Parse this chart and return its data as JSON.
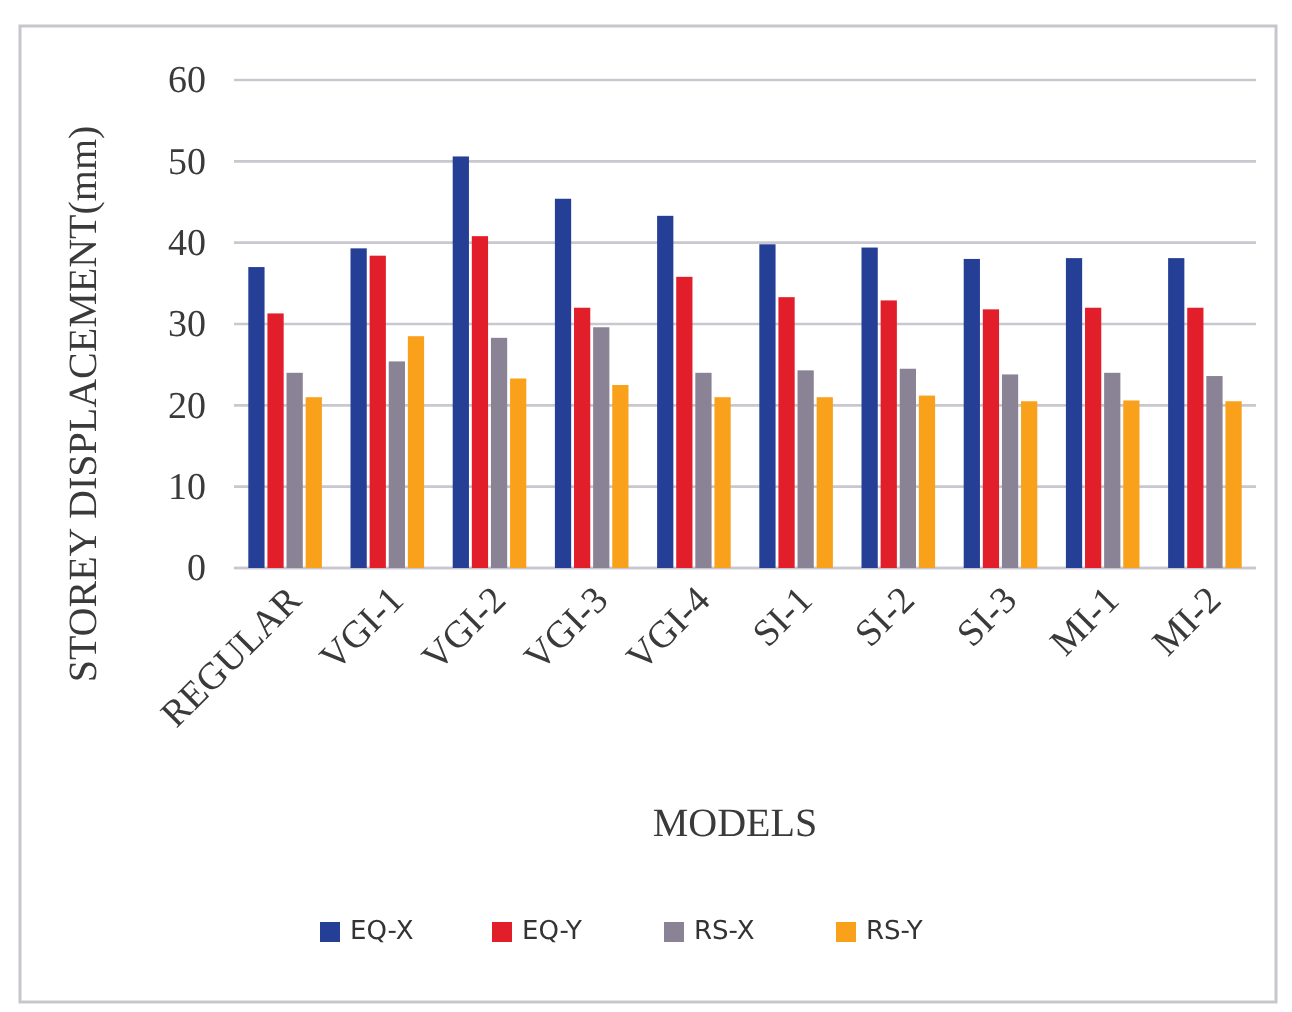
{
  "chart_data": {
    "type": "bar",
    "xlabel": "MODELS",
    "ylabel": "STOREY DISPLACEMENT(mm)",
    "categories": [
      "REGULAR",
      "VGI-1",
      "VGI-2",
      "VGI-3",
      "VGI-4",
      "SI-1",
      "SI-2",
      "SI-3",
      "MI-1",
      "MI-2"
    ],
    "series": [
      {
        "name": "EQ-X",
        "color": "#253f96",
        "values": [
          37,
          39.3,
          50.6,
          45.4,
          43.3,
          39.8,
          39.4,
          38,
          38.1,
          38.1
        ]
      },
      {
        "name": "EQ-Y",
        "color": "#e31e2b",
        "values": [
          31.3,
          38.4,
          40.8,
          32,
          35.8,
          33.3,
          32.9,
          31.8,
          32,
          32
        ]
      },
      {
        "name": "RS-X",
        "color": "#8a8295",
        "values": [
          24,
          25.4,
          28.3,
          29.6,
          24,
          24.3,
          24.5,
          23.8,
          24,
          23.6
        ]
      },
      {
        "name": "RS-Y",
        "color": "#f9a11b",
        "values": [
          21,
          28.5,
          23.3,
          22.5,
          21,
          21,
          21.2,
          20.5,
          20.6,
          20.5
        ]
      }
    ],
    "ylim": [
      0,
      60
    ],
    "yticks": [
      0,
      10,
      20,
      30,
      40,
      50,
      60
    ],
    "grid": "y",
    "legend": "bottom"
  }
}
